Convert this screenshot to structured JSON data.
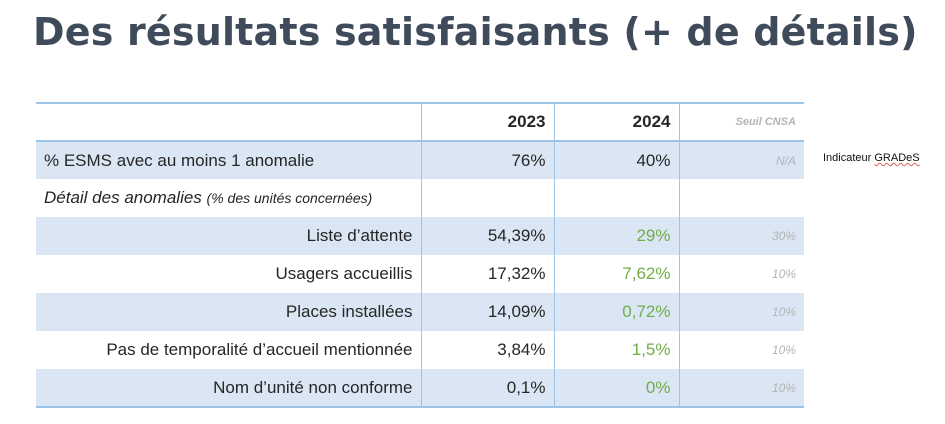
{
  "title": "Des résultats satisfaisants (+ de détails)",
  "table": {
    "headers": {
      "year1": "2023",
      "year2": "2024",
      "threshold": "Seuil CNSA"
    },
    "esms_row": {
      "label": "% ESMS avec au moins 1 anomalie",
      "v2023": "76%",
      "v2024": "40%",
      "threshold": "N/A"
    },
    "detail_row": {
      "label": "Détail des anomalies",
      "sublabel": "(% des unités concernées)"
    },
    "rows": [
      {
        "label": "Liste d’attente",
        "v2023": "54,39%",
        "v2024": "29%",
        "threshold": "30%"
      },
      {
        "label": "Usagers accueillis",
        "v2023": "17,32%",
        "v2024": "7,62%",
        "threshold": "10%"
      },
      {
        "label": "Places installées",
        "v2023": "14,09%",
        "v2024": "0,72%",
        "threshold": "10%"
      },
      {
        "label": "Pas de temporalité d’accueil mentionnée",
        "v2023": "3,84%",
        "v2024": "1,5%",
        "threshold": "10%"
      },
      {
        "label": "Nom d’unité non conforme",
        "v2023": "0,1%",
        "v2024": "0%",
        "threshold": "10%"
      }
    ]
  },
  "side_note": {
    "prefix": "Indicateur ",
    "term": "GRADeS"
  },
  "colors": {
    "title": "#3f4b5b",
    "band": "#dae6f4",
    "border": "#9dc3e6",
    "green": "#70ad47",
    "muted": "#b4b4b4"
  }
}
